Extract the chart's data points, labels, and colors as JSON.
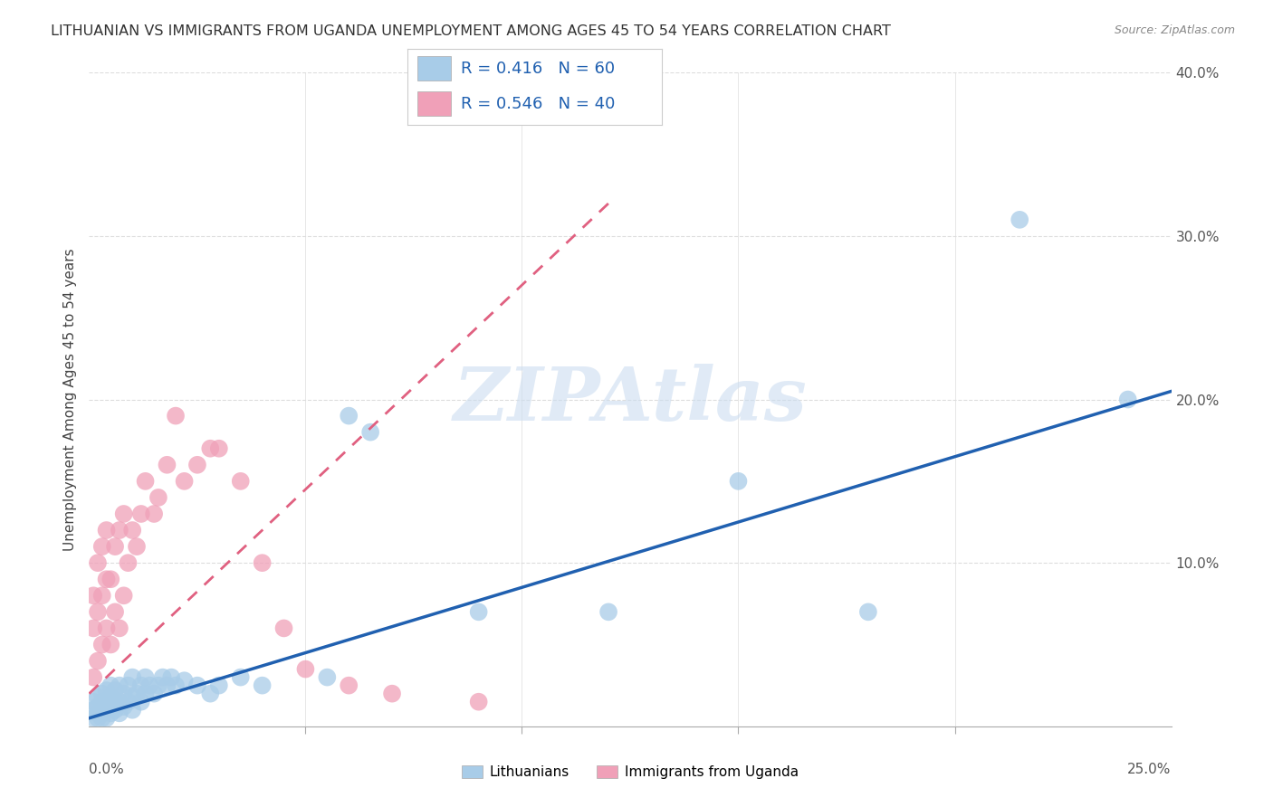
{
  "title": "LITHUANIAN VS IMMIGRANTS FROM UGANDA UNEMPLOYMENT AMONG AGES 45 TO 54 YEARS CORRELATION CHART",
  "source": "Source: ZipAtlas.com",
  "xlabel_bottom_left": "0.0%",
  "xlabel_bottom_right": "25.0%",
  "ylabel": "Unemployment Among Ages 45 to 54 years",
  "legend_label1": "Lithuanians",
  "legend_label2": "Immigrants from Uganda",
  "R1": 0.416,
  "N1": 60,
  "R2": 0.546,
  "N2": 40,
  "color_blue": "#a8cce8",
  "color_pink": "#f0a0b8",
  "color_line_blue": "#2060b0",
  "color_line_pink": "#e06080",
  "watermark": "ZIPAtlas",
  "watermark_color": "#ccddf0",
  "xlim": [
    0.0,
    0.25
  ],
  "ylim": [
    0.0,
    0.4
  ],
  "blue_x": [
    0.001,
    0.001,
    0.001,
    0.002,
    0.002,
    0.002,
    0.002,
    0.003,
    0.003,
    0.003,
    0.003,
    0.003,
    0.004,
    0.004,
    0.004,
    0.004,
    0.005,
    0.005,
    0.005,
    0.005,
    0.006,
    0.006,
    0.006,
    0.007,
    0.007,
    0.007,
    0.008,
    0.008,
    0.009,
    0.009,
    0.01,
    0.01,
    0.01,
    0.011,
    0.012,
    0.012,
    0.013,
    0.013,
    0.014,
    0.015,
    0.016,
    0.017,
    0.018,
    0.019,
    0.02,
    0.022,
    0.025,
    0.028,
    0.03,
    0.035,
    0.04,
    0.055,
    0.06,
    0.065,
    0.09,
    0.12,
    0.15,
    0.18,
    0.215,
    0.24
  ],
  "blue_y": [
    0.005,
    0.01,
    0.015,
    0.005,
    0.008,
    0.012,
    0.018,
    0.005,
    0.008,
    0.012,
    0.015,
    0.02,
    0.005,
    0.01,
    0.015,
    0.022,
    0.008,
    0.012,
    0.018,
    0.025,
    0.01,
    0.015,
    0.022,
    0.008,
    0.015,
    0.025,
    0.012,
    0.02,
    0.015,
    0.025,
    0.01,
    0.018,
    0.03,
    0.02,
    0.015,
    0.025,
    0.02,
    0.03,
    0.025,
    0.02,
    0.025,
    0.03,
    0.025,
    0.03,
    0.025,
    0.028,
    0.025,
    0.02,
    0.025,
    0.03,
    0.025,
    0.03,
    0.19,
    0.18,
    0.07,
    0.07,
    0.15,
    0.07,
    0.31,
    0.2
  ],
  "pink_x": [
    0.001,
    0.001,
    0.001,
    0.002,
    0.002,
    0.002,
    0.003,
    0.003,
    0.003,
    0.004,
    0.004,
    0.004,
    0.005,
    0.005,
    0.006,
    0.006,
    0.007,
    0.007,
    0.008,
    0.008,
    0.009,
    0.01,
    0.011,
    0.012,
    0.013,
    0.015,
    0.016,
    0.018,
    0.02,
    0.022,
    0.025,
    0.028,
    0.03,
    0.035,
    0.04,
    0.045,
    0.05,
    0.06,
    0.07,
    0.09
  ],
  "pink_y": [
    0.03,
    0.06,
    0.08,
    0.04,
    0.07,
    0.1,
    0.05,
    0.08,
    0.11,
    0.06,
    0.09,
    0.12,
    0.05,
    0.09,
    0.07,
    0.11,
    0.06,
    0.12,
    0.08,
    0.13,
    0.1,
    0.12,
    0.11,
    0.13,
    0.15,
    0.13,
    0.14,
    0.16,
    0.19,
    0.15,
    0.16,
    0.17,
    0.17,
    0.15,
    0.1,
    0.06,
    0.035,
    0.025,
    0.02,
    0.015
  ],
  "blue_line_x": [
    0.0,
    0.25
  ],
  "blue_line_y": [
    0.005,
    0.205
  ],
  "pink_line_x": [
    0.0,
    0.12
  ],
  "pink_line_y": [
    0.02,
    0.32
  ]
}
